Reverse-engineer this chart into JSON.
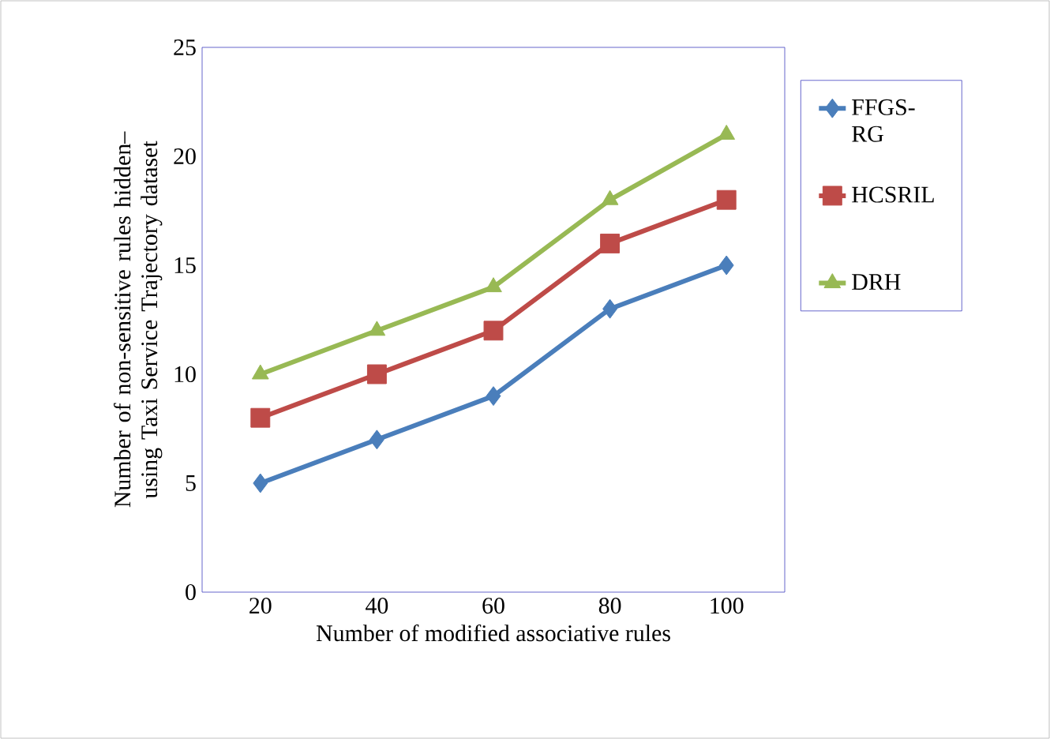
{
  "chart_data": {
    "type": "line",
    "xlabel": "Number of modified associative rules",
    "ylabel": "Number of non-sensitive rules  hidden– using Taxi Service Trajectory dataset",
    "categories": [
      "20",
      "40",
      "60",
      "80",
      "100"
    ],
    "ylim": [
      0,
      25
    ],
    "yticks": [
      0,
      5,
      10,
      15,
      20,
      25
    ],
    "legend": "right",
    "grid": false,
    "series": [
      {
        "name": "FFGS-RG",
        "color": "#4a7ebb",
        "marker": "diamond",
        "values": [
          5,
          7,
          9,
          13,
          15
        ]
      },
      {
        "name": "HCSRIL",
        "color": "#be4b48",
        "marker": "square",
        "values": [
          8,
          10,
          12,
          16,
          18
        ]
      },
      {
        "name": "DRH",
        "color": "#98b954",
        "marker": "triangle",
        "values": [
          10,
          12,
          14,
          18,
          21
        ]
      }
    ]
  }
}
